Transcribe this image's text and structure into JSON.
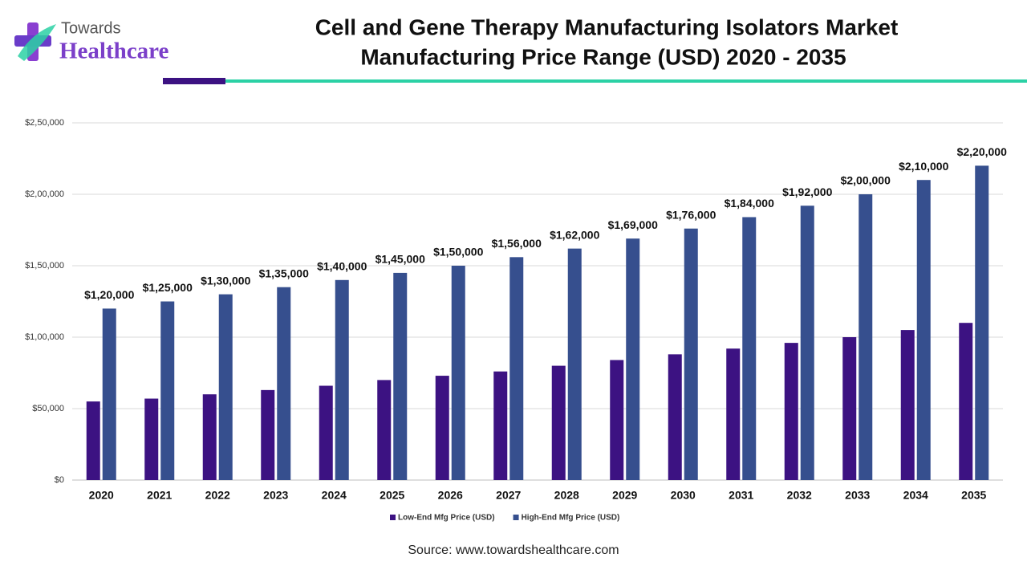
{
  "logo": {
    "top": "Towards",
    "bottom": "Healthcare"
  },
  "chart_data": {
    "type": "bar",
    "title": "Cell and Gene Therapy Manufacturing Isolators Market",
    "subtitle": "Manufacturing Price Range (USD) 2020 - 2035",
    "source": "Source: www.towardshealthcare.com",
    "categories": [
      "2020",
      "2021",
      "2022",
      "2023",
      "2024",
      "2025",
      "2026",
      "2027",
      "2028",
      "2029",
      "2030",
      "2031",
      "2032",
      "2033",
      "2034",
      "2035"
    ],
    "series": [
      {
        "name": "Low-End Mfg Price (USD)",
        "color": "#3c1282",
        "values": [
          55000,
          57000,
          60000,
          63000,
          66000,
          70000,
          73000,
          76000,
          80000,
          84000,
          88000,
          92000,
          96000,
          100000,
          105000,
          110000
        ]
      },
      {
        "name": "High-End Mfg Price (USD)",
        "color": "#364f8e",
        "values": [
          120000,
          125000,
          130000,
          135000,
          140000,
          145000,
          150000,
          156000,
          162000,
          169000,
          176000,
          184000,
          192000,
          200000,
          210000,
          220000
        ],
        "value_labels": [
          "$1,20,000",
          "$1,25,000",
          "$1,30,000",
          "$1,35,000",
          "$1,40,000",
          "$1,45,000",
          "$1,50,000",
          "$1,56,000",
          "$1,62,000",
          "$1,69,000",
          "$1,76,000",
          "$1,84,000",
          "$1,92,000",
          "$2,00,000",
          "$2,10,000",
          "$2,20,000"
        ]
      }
    ],
    "ylim": [
      0,
      250000
    ],
    "yticks": [
      {
        "value": 0,
        "label": "$0"
      },
      {
        "value": 50000,
        "label": "$50,000"
      },
      {
        "value": 100000,
        "label": "$1,00,000"
      },
      {
        "value": 150000,
        "label": "$1,50,000"
      },
      {
        "value": 200000,
        "label": "$2,00,000"
      },
      {
        "value": 250000,
        "label": "$2,50,000"
      }
    ],
    "grid": true
  }
}
